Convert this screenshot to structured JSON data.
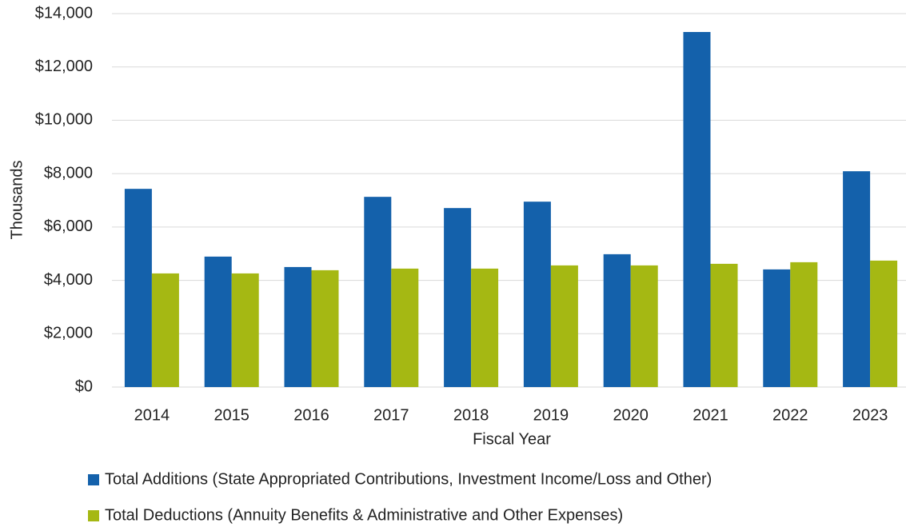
{
  "chart_data": {
    "type": "bar",
    "x_label": "Fiscal Year",
    "y_label": "Thousands",
    "categories": [
      "2014",
      "2015",
      "2016",
      "2017",
      "2018",
      "2019",
      "2020",
      "2021",
      "2022",
      "2023"
    ],
    "series": [
      {
        "name": "Total Additions (State Appropriated Contributions, Investment Income/Loss and Other)",
        "color": "#1461ab",
        "values": [
          7430,
          4890,
          4500,
          7130,
          6710,
          6950,
          4980,
          13310,
          4410,
          8090
        ]
      },
      {
        "name": "Total Deductions (Annuity Benefits & Administrative and Other Expenses)",
        "color": "#a5b813",
        "values": [
          4260,
          4260,
          4380,
          4440,
          4440,
          4560,
          4560,
          4620,
          4680,
          4740
        ]
      }
    ],
    "ylim": [
      0,
      14000
    ],
    "yticks": [
      {
        "value": 0,
        "label": "$0"
      },
      {
        "value": 2000,
        "label": "$2,000"
      },
      {
        "value": 4000,
        "label": "$4,000"
      },
      {
        "value": 6000,
        "label": "$6,000"
      },
      {
        "value": 8000,
        "label": "$8,000"
      },
      {
        "value": 10000,
        "label": "$10,000"
      },
      {
        "value": 12000,
        "label": "$12,000"
      },
      {
        "value": 14000,
        "label": "$14,000"
      }
    ],
    "grid": true
  }
}
